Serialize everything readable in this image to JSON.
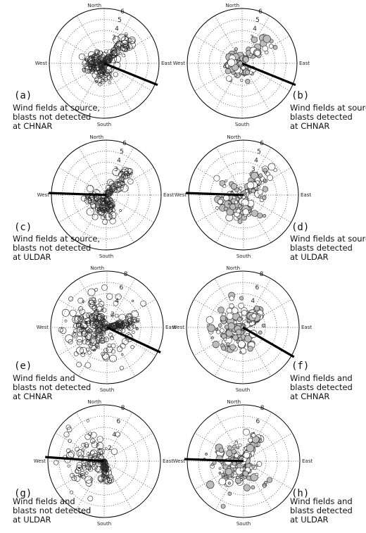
{
  "compass": {
    "north": "North",
    "south": "South",
    "east": "East",
    "west": "West"
  },
  "chart_data": [
    {
      "type": "polar-scatter",
      "panel": "(a)",
      "caption": [
        "Wind fields at source,",
        "blasts not detected",
        "at CHNAR"
      ],
      "rmax": 6,
      "ring_labels": [
        "3",
        "4",
        "5",
        "6"
      ],
      "marker_fill": "white",
      "direction_line_deg": 22,
      "n_points": 190,
      "spread": {
        "main_deg": 200,
        "sd_deg": 55,
        "mean_r": 1.2,
        "sd_r": 0.6,
        "arm_deg": 45,
        "arm_r": 4.0
      }
    },
    {
      "type": "polar-scatter",
      "panel": "(b)",
      "caption": [
        "Wind fields at source,",
        "blasts detected",
        "at CHNAR"
      ],
      "rmax": 6,
      "ring_labels": [
        "3",
        "4",
        "5",
        "6"
      ],
      "marker_fill": "gray",
      "direction_line_deg": 22,
      "n_points": 150,
      "spread": {
        "main_deg": 210,
        "sd_deg": 50,
        "mean_r": 1.0,
        "sd_r": 0.5,
        "arm_deg": 48,
        "arm_r": 4.2
      }
    },
    {
      "type": "polar-scatter",
      "panel": "(c)",
      "caption": [
        "Wind fields at source,",
        "blasts not detected",
        "at ULDAR"
      ],
      "rmax": 6,
      "ring_labels": [
        "3",
        "4",
        "5",
        "6"
      ],
      "marker_fill": "white",
      "direction_line_deg": 178,
      "n_points": 150,
      "spread": {
        "main_deg": 250,
        "sd_deg": 45,
        "mean_r": 1.5,
        "sd_r": 0.7,
        "arm_deg": 45,
        "arm_r": 3.8
      }
    },
    {
      "type": "polar-scatter",
      "panel": "(d)",
      "caption": [
        "Wind fields at source,",
        "blasts detected",
        "at ULDAR"
      ],
      "rmax": 6,
      "ring_labels": [
        "3",
        "4",
        "5",
        "6"
      ],
      "marker_fill": "gray",
      "direction_line_deg": 178,
      "n_points": 200,
      "spread": {
        "main_deg": 240,
        "sd_deg": 50,
        "mean_r": 1.6,
        "sd_r": 0.7,
        "arm_deg": 45,
        "arm_r": 4.5
      }
    },
    {
      "type": "polar-scatter",
      "panel": "(e)",
      "caption": [
        "Wind fields and",
        "blasts not detected",
        "at CHNAR"
      ],
      "rmax": 8,
      "ring_labels": [
        "2",
        "4",
        "6",
        "8"
      ],
      "marker_fill": "white",
      "direction_line_deg": 25,
      "n_points": 280,
      "spread": {
        "main_deg": 175,
        "sd_deg": 60,
        "mean_r": 3.0,
        "sd_r": 1.6,
        "arm_deg": 10,
        "arm_r": 4.5
      }
    },
    {
      "type": "polar-scatter",
      "panel": "(f)",
      "caption": [
        "Wind fields and",
        "blasts detected",
        "at CHNAR"
      ],
      "rmax": 8,
      "ring_labels": [
        "2",
        "4",
        "6",
        "8"
      ],
      "marker_fill": "gray",
      "direction_line_deg": 30,
      "n_points": 190,
      "spread": {
        "main_deg": 185,
        "sd_deg": 55,
        "mean_r": 2.2,
        "sd_r": 1.2,
        "arm_deg": 40,
        "arm_r": 3.5
      }
    },
    {
      "type": "polar-scatter",
      "panel": "(g)",
      "caption": [
        "Wind fields and",
        "blasts not detected",
        "at ULDAR"
      ],
      "rmax": 8,
      "ring_labels": [
        "2",
        "4",
        "6",
        "8"
      ],
      "marker_fill": "white",
      "direction_line_deg": 176,
      "n_points": 140,
      "spread": {
        "main_deg": 160,
        "sd_deg": 45,
        "mean_r": 3.0,
        "sd_r": 1.8,
        "arm_deg": 275,
        "arm_r": 3.0
      }
    },
    {
      "type": "polar-scatter",
      "panel": "(h)",
      "caption": [
        "Wind fields and",
        "blasts detected",
        "at ULDAR"
      ],
      "rmax": 8,
      "ring_labels": [
        "2",
        "4",
        "6",
        "8"
      ],
      "marker_fill": "gray",
      "direction_line_deg": 178,
      "n_points": 210,
      "spread": {
        "main_deg": 220,
        "sd_deg": 60,
        "mean_r": 2.2,
        "sd_r": 1.3,
        "arm_deg": 60,
        "arm_r": 4.0
      }
    }
  ]
}
